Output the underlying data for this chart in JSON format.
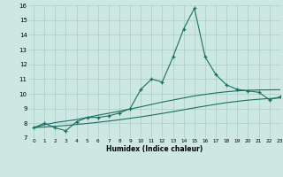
{
  "xlabel": "Humidex (Indice chaleur)",
  "x": [
    0,
    1,
    2,
    3,
    4,
    5,
    6,
    7,
    8,
    9,
    10,
    11,
    12,
    13,
    14,
    15,
    16,
    17,
    18,
    19,
    20,
    21,
    22,
    23
  ],
  "line1": [
    7.7,
    8.0,
    7.7,
    7.5,
    8.1,
    8.4,
    8.4,
    8.5,
    8.7,
    9.0,
    10.3,
    11.0,
    10.8,
    12.5,
    14.4,
    15.8,
    12.5,
    11.3,
    10.6,
    10.3,
    10.2,
    10.1,
    9.6,
    9.8
  ],
  "line2": [
    7.7,
    7.9,
    8.05,
    8.15,
    8.25,
    8.4,
    8.55,
    8.68,
    8.82,
    8.97,
    9.12,
    9.28,
    9.44,
    9.58,
    9.72,
    9.86,
    9.96,
    10.06,
    10.14,
    10.2,
    10.24,
    10.26,
    10.27,
    10.28
  ],
  "line3": [
    7.7,
    7.75,
    7.8,
    7.85,
    7.92,
    7.99,
    8.07,
    8.15,
    8.24,
    8.34,
    8.44,
    8.55,
    8.67,
    8.79,
    8.92,
    9.05,
    9.17,
    9.29,
    9.4,
    9.49,
    9.57,
    9.63,
    9.68,
    9.72
  ],
  "bg_color": "#cde8e2",
  "grid_color_major": "#aacdc6",
  "grid_color_minor": "#b8d8d2",
  "line_color": "#1a7060",
  "ylim": [
    7,
    16
  ],
  "xlim": [
    -0.5,
    23
  ],
  "yticks": [
    7,
    8,
    9,
    10,
    11,
    12,
    13,
    14,
    15,
    16
  ],
  "xticks": [
    0,
    1,
    2,
    3,
    4,
    5,
    6,
    7,
    8,
    9,
    10,
    11,
    12,
    13,
    14,
    15,
    16,
    17,
    18,
    19,
    20,
    21,
    22,
    23
  ]
}
